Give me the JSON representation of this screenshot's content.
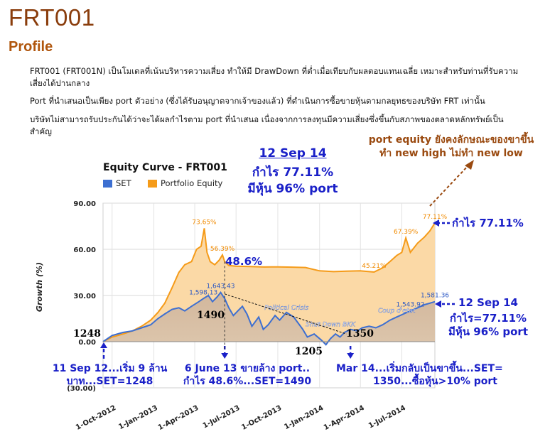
{
  "page": {
    "title": "FRT001",
    "subtitle": "Profile",
    "paragraphs": [
      "FRT001 (FRT001N) เป็นโมเดลที่เน้นบริหารความเสี่ยง ทำให้มี DrawDown ที่ต่ำเมื่อเทียบกับผลตอบแทนเฉลี่ย เหมาะสำหรับท่านที่รับความเสี่ยงได้ปานกลาง",
      "Port ที่นำเสนอเป็นเพียง port ตัวอย่าง (ซึ่งได้รับอนุญาตจากเจ้าของแล้ว) ที่ดำเนินการซื้อขายหุ้นตามกลยุทธของบริษัท FRT เท่านั้น",
      "บริษัทไม่สามารถรับประกันได้ว่าจะได้ผลกำไรตาม port ที่นำเสนอ เนื่องจากการลงทุนมีความเสี่ยงซึ่งขึ้นกับสภาพของตลาดหลักทรัพย์เป็นสำคัญ"
    ]
  },
  "annotations": {
    "top_center": [
      "12 Sep 14",
      "กำไร 77.11%",
      "มีหุ้น 96% port"
    ],
    "top_right": [
      "port equity ยังคงลักษณะของขาขึ้น",
      "ทำ new high ไม่ทำ new low"
    ],
    "right_gain": "กำไร 77.11%",
    "right_block": [
      "12 Sep 14",
      "กำไร=77.11%",
      "มีหุ้น 96% port"
    ],
    "mid_pct": "48.6%",
    "bottom_left": [
      "11 Sep 12...เริ่ม 9 ล้าน",
      "บาท...SET=1248"
    ],
    "bottom_mid": [
      "6 June 13 ขายล้าง port..",
      "กำไร 48.6%...SET=1490"
    ],
    "bottom_right": [
      "Mar 14...เริ่มกลับเป็นขาขึ้น...SET=",
      "1350...ซื้อหุ้น>10% port"
    ],
    "set_levels": [
      "1248",
      "1490",
      "1205",
      "1350"
    ]
  },
  "chart_data": {
    "type": "area",
    "title": "Equity Curve - FRT001",
    "ylabel": "Growth (%)",
    "ylim": [
      -30,
      90
    ],
    "yticks": [
      "90.00",
      "60.00",
      "30.00",
      "0.00",
      "(30.00)"
    ],
    "xticks": [
      "1-Oct-2012",
      "1-Jan-2013",
      "1-Apr-2013",
      "1-Jul-2013",
      "1-Oct-2013",
      "1-Jan-2014",
      "1-Apr-2014",
      "1-Jul-2014"
    ],
    "xrange": [
      "2012-09-11",
      "2014-09-12"
    ],
    "series": [
      {
        "name": "SET",
        "color": "#3d6fd1",
        "points": [
          [
            "2012-09-11",
            0
          ],
          [
            "2012-10-01",
            4
          ],
          [
            "2012-10-25",
            6
          ],
          [
            "2012-11-15",
            7
          ],
          [
            "2012-12-05",
            9
          ],
          [
            "2012-12-25",
            11
          ],
          [
            "2013-01-10",
            15
          ],
          [
            "2013-01-25",
            18
          ],
          [
            "2013-02-10",
            21
          ],
          [
            "2013-02-25",
            22
          ],
          [
            "2013-03-10",
            20
          ],
          [
            "2013-03-25",
            23
          ],
          [
            "2013-04-10",
            26
          ],
          [
            "2013-04-20",
            28
          ],
          [
            "2013-05-01",
            30
          ],
          [
            "2013-05-10",
            26
          ],
          [
            "2013-05-20",
            29
          ],
          [
            "2013-05-28",
            32
          ],
          [
            "2013-06-06",
            28
          ],
          [
            "2013-06-15",
            22
          ],
          [
            "2013-06-25",
            17
          ],
          [
            "2013-07-05",
            20
          ],
          [
            "2013-07-15",
            23
          ],
          [
            "2013-07-25",
            18
          ],
          [
            "2013-08-05",
            10
          ],
          [
            "2013-08-20",
            16
          ],
          [
            "2013-08-30",
            8
          ],
          [
            "2013-09-10",
            11
          ],
          [
            "2013-09-25",
            17
          ],
          [
            "2013-10-05",
            14
          ],
          [
            "2013-10-20",
            19
          ],
          [
            "2013-11-05",
            16
          ],
          [
            "2013-11-15",
            12
          ],
          [
            "2013-11-25",
            8
          ],
          [
            "2013-12-05",
            3
          ],
          [
            "2013-12-20",
            5
          ],
          [
            "2014-01-05",
            1
          ],
          [
            "2014-01-15",
            -2
          ],
          [
            "2014-01-25",
            2
          ],
          [
            "2014-02-05",
            5
          ],
          [
            "2014-02-15",
            3
          ],
          [
            "2014-02-25",
            6
          ],
          [
            "2014-03-10",
            8
          ],
          [
            "2014-03-25",
            7
          ],
          [
            "2014-04-05",
            9
          ],
          [
            "2014-04-20",
            10
          ],
          [
            "2014-05-05",
            9
          ],
          [
            "2014-05-20",
            11
          ],
          [
            "2014-06-05",
            14
          ],
          [
            "2014-06-20",
            16
          ],
          [
            "2014-07-05",
            18
          ],
          [
            "2014-07-20",
            20
          ],
          [
            "2014-08-05",
            22
          ],
          [
            "2014-08-20",
            24
          ],
          [
            "2014-09-01",
            25
          ],
          [
            "2014-09-12",
            26
          ]
        ]
      },
      {
        "name": "Portfolio Equity",
        "color": "#f59b19",
        "fill": "#fbd9a6",
        "points": [
          [
            "2012-09-11",
            0
          ],
          [
            "2012-10-01",
            3
          ],
          [
            "2012-10-25",
            5
          ],
          [
            "2012-11-15",
            7
          ],
          [
            "2012-12-05",
            10
          ],
          [
            "2012-12-25",
            14
          ],
          [
            "2013-01-10",
            19
          ],
          [
            "2013-01-25",
            25
          ],
          [
            "2013-02-10",
            35
          ],
          [
            "2013-02-25",
            45
          ],
          [
            "2013-03-10",
            50
          ],
          [
            "2013-03-25",
            52
          ],
          [
            "2013-04-05",
            60
          ],
          [
            "2013-04-15",
            62
          ],
          [
            "2013-04-22",
            73.65
          ],
          [
            "2013-04-28",
            58
          ],
          [
            "2013-05-05",
            52
          ],
          [
            "2013-05-15",
            50
          ],
          [
            "2013-05-25",
            53
          ],
          [
            "2013-06-01",
            56.39
          ],
          [
            "2013-06-06",
            52
          ],
          [
            "2013-06-15",
            49.5
          ],
          [
            "2013-07-01",
            49
          ],
          [
            "2013-08-01",
            48.8
          ],
          [
            "2013-09-01",
            48.5
          ],
          [
            "2013-10-01",
            48.6
          ],
          [
            "2013-11-01",
            48.4
          ],
          [
            "2013-12-01",
            48.2
          ],
          [
            "2014-01-01",
            46
          ],
          [
            "2014-02-01",
            45.5
          ],
          [
            "2014-03-01",
            45.8
          ],
          [
            "2014-04-01",
            46
          ],
          [
            "2014-05-01",
            45.21
          ],
          [
            "2014-05-20",
            48
          ],
          [
            "2014-06-05",
            52
          ],
          [
            "2014-06-20",
            56
          ],
          [
            "2014-07-01",
            58
          ],
          [
            "2014-07-10",
            67.39
          ],
          [
            "2014-07-20",
            58
          ],
          [
            "2014-08-05",
            64
          ],
          [
            "2014-08-20",
            68
          ],
          [
            "2014-09-01",
            72
          ],
          [
            "2014-09-12",
            77.11
          ]
        ]
      }
    ],
    "data_labels": [
      {
        "series": "Portfolio Equity",
        "x": "2013-04-22",
        "y": 73.65,
        "text": "73.65%"
      },
      {
        "series": "Portfolio Equity",
        "x": "2013-06-01",
        "y": 56.39,
        "text": "56.39%"
      },
      {
        "series": "Portfolio Equity",
        "x": "2014-05-01",
        "y": 45.21,
        "text": "45.21%"
      },
      {
        "series": "Portfolio Equity",
        "x": "2014-07-10",
        "y": 67.39,
        "text": "67.39%"
      },
      {
        "series": "Portfolio Equity",
        "x": "2014-09-12",
        "y": 77.11,
        "text": "77.11%"
      },
      {
        "series": "SET",
        "x": "2013-04-20",
        "y": 28,
        "text": "1,598.13"
      },
      {
        "series": "SET",
        "x": "2013-05-28",
        "y": 32,
        "text": "1,643.43"
      },
      {
        "series": "SET",
        "x": "2014-07-20",
        "y": 20,
        "text": "1,543.92"
      },
      {
        "series": "SET",
        "x": "2014-09-12",
        "y": 26,
        "text": "1,581.36"
      }
    ],
    "events": [
      {
        "x": "2013-10-20",
        "y": 19,
        "text": "Political Crisis"
      },
      {
        "x": "2014-01-25",
        "y": 8,
        "text": "Shut Down BKK"
      },
      {
        "x": "2014-06-20",
        "y": 17,
        "text": "Coup d'etat"
      }
    ],
    "grid": true,
    "legend": "top-left"
  }
}
